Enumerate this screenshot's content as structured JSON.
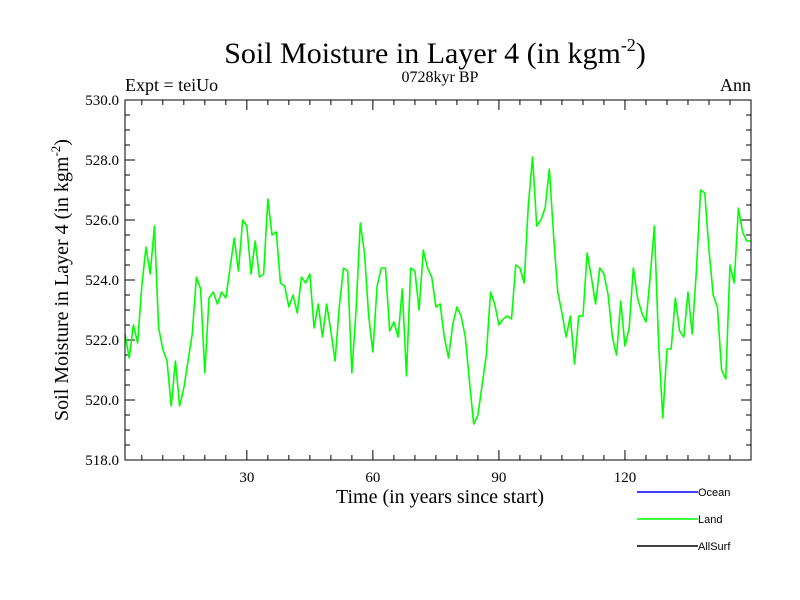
{
  "chart_data": {
    "type": "line",
    "title": "Soil Moisture in Layer 4 (in kgm",
    "title_sup": "-2",
    "title_close": ")",
    "subtitle": "0728kyr BP",
    "left_label": "Expt = teiUo",
    "right_label": "Ann",
    "xlabel": "Time (in years since start)",
    "ylabel": "Soil Moisture in Layer 4 (in kgm",
    "ylabel_sup": "-2",
    "ylabel_close": ")",
    "xlim": [
      1,
      150
    ],
    "ylim": [
      518.0,
      530.0
    ],
    "x_ticks": [
      30,
      60,
      90,
      120
    ],
    "x_tick_labels": [
      "30",
      "60",
      "90",
      "120"
    ],
    "y_ticks": [
      518,
      520,
      522,
      524,
      526,
      528,
      530
    ],
    "y_tick_labels": [
      "518.0",
      "520.0",
      "522.0",
      "524.0",
      "526.0",
      "528.0",
      "530.0"
    ],
    "legend": [
      {
        "name": "Ocean",
        "color": "#0000ff"
      },
      {
        "name": "Land",
        "color": "#00ff00"
      },
      {
        "name": "AllSurf",
        "color": "#000000"
      }
    ],
    "series": [
      {
        "name": "Land",
        "color": "#00ff00",
        "x_start": 1,
        "x_step": 1,
        "values": [
          522.2,
          521.4,
          522.5,
          521.9,
          523.8,
          525.1,
          524.2,
          525.8,
          522.4,
          521.7,
          521.3,
          519.8,
          521.3,
          519.8,
          520.4,
          521.3,
          522.2,
          524.1,
          523.7,
          520.9,
          523.4,
          523.6,
          523.2,
          523.6,
          523.4,
          524.4,
          525.4,
          524.3,
          526.0,
          525.8,
          524.2,
          525.3,
          524.1,
          524.2,
          526.7,
          525.5,
          525.6,
          523.9,
          523.8,
          523.1,
          523.5,
          522.9,
          524.1,
          523.9,
          524.2,
          522.4,
          523.2,
          522.1,
          523.2,
          522.3,
          521.3,
          523.1,
          524.4,
          524.3,
          520.9,
          523.0,
          525.9,
          524.9,
          522.8,
          521.6,
          523.8,
          524.4,
          524.4,
          522.3,
          522.6,
          522.1,
          523.7,
          520.8,
          524.4,
          524.3,
          523.0,
          525.0,
          524.4,
          524.1,
          523.1,
          523.2,
          522.1,
          521.4,
          522.5,
          523.1,
          522.8,
          522.1,
          520.6,
          519.2,
          519.5,
          520.5,
          521.5,
          523.6,
          523.2,
          522.5,
          522.7,
          522.8,
          522.7,
          524.5,
          524.4,
          523.9,
          526.5,
          528.1,
          525.8,
          526.0,
          526.4,
          527.7,
          525.5,
          523.6,
          522.9,
          522.1,
          522.8,
          521.2,
          522.8,
          522.8,
          524.9,
          524.1,
          523.2,
          524.4,
          524.2,
          523.5,
          522.1,
          521.5,
          523.3,
          521.8,
          522.4,
          524.4,
          523.4,
          522.9,
          522.6,
          524.1,
          525.8,
          521.9,
          519.4,
          521.7,
          521.7,
          523.4,
          522.3,
          522.1,
          523.6,
          522.2,
          524.3,
          527.0,
          526.9,
          525.0,
          523.5,
          523.1,
          521.0,
          520.7,
          524.5,
          523.9,
          526.4,
          525.6,
          525.3,
          525.3
        ]
      }
    ]
  }
}
